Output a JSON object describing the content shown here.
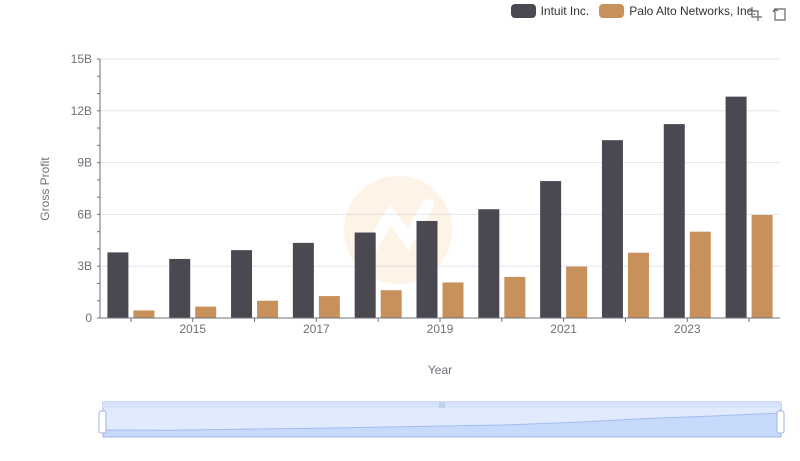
{
  "colors": {
    "intuit": "#4a4952",
    "palo": "#c8915c",
    "grid": "#e0e6f1",
    "axis": "#6e7079",
    "zoom_fill": "#d7e3fb",
    "zoom_border": "#9fb4e6"
  },
  "legend": {
    "series_1": "Intuit Inc.",
    "series_2": "Palo Alto Networks, Inc."
  },
  "toolbox": {
    "zoom_icon": "data-zoom-icon",
    "reset_icon": "restore-icon"
  },
  "chart_data": {
    "type": "bar",
    "xlabel": "Year",
    "ylabel": "Gross Profit",
    "ylim": [
      0,
      15000000000
    ],
    "yticks": [
      "0",
      "3B",
      "6B",
      "9B",
      "12B",
      "15B"
    ],
    "categories": [
      "2014",
      "2015",
      "2016",
      "2017",
      "2018",
      "2019",
      "2020",
      "2021",
      "2022",
      "2023",
      "2024"
    ],
    "xtick_labels": [
      "2015",
      "2017",
      "2019",
      "2021",
      "2023"
    ],
    "series": [
      {
        "name": "Intuit Inc.",
        "values": [
          3800000000,
          3420000000,
          3930000000,
          4350000000,
          4950000000,
          5620000000,
          6300000000,
          7930000000,
          10300000000,
          11230000000,
          12820000000
        ]
      },
      {
        "name": "Palo Alto Networks, Inc.",
        "values": [
          440000000,
          660000000,
          1000000000,
          1270000000,
          1610000000,
          2060000000,
          2380000000,
          2980000000,
          3780000000,
          5000000000,
          5970000000
        ]
      }
    ],
    "grid": true,
    "legend_position": "top-right"
  }
}
